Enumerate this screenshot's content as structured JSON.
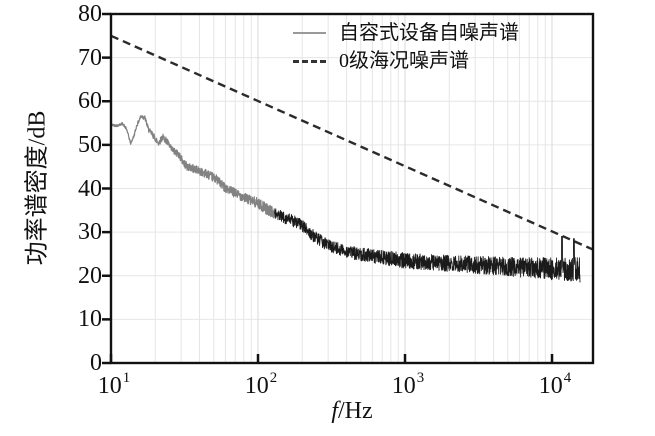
{
  "figure": {
    "background": "#ffffff",
    "ylabel": "功率谱密度/dB",
    "xlabel_italic": "f",
    "xlabel_unit": "/Hz",
    "legend": {
      "position": "top-right",
      "items": [
        {
          "label": "自容式设备自噪声谱",
          "style": "solid",
          "sample_color": "#999999"
        },
        {
          "label": "0级海况噪声谱",
          "style": "dashed",
          "sample_color": "#333333"
        }
      ]
    }
  },
  "chart_data": {
    "type": "line",
    "title": "",
    "xlabel": "f/Hz",
    "ylabel": "功率谱密度/dB",
    "xscale": "log",
    "xlim": [
      10,
      19000
    ],
    "ylim": [
      0,
      80
    ],
    "yticks": [
      0,
      10,
      20,
      30,
      40,
      50,
      60,
      70,
      80
    ],
    "xticks": [
      {
        "value": 10,
        "base": "10",
        "exp": "1"
      },
      {
        "value": 100,
        "base": "10",
        "exp": "2"
      },
      {
        "value": 1000,
        "base": "10",
        "exp": "3"
      },
      {
        "value": 10000,
        "base": "10",
        "exp": "4"
      }
    ],
    "grid": true,
    "grid_color_minor": "#e6e6e6",
    "grid_color_major": "#d9d9d9",
    "legend_position": "top-right",
    "series": [
      {
        "name": "自容式设备自噪声谱",
        "line": "solid",
        "color_low_freq": "#828282",
        "color_high_freq": "#1b1b1b",
        "f_start": 10,
        "f_end": 15500,
        "keypoints": [
          [
            10,
            54.6
          ],
          [
            11,
            54.4
          ],
          [
            12,
            54.9
          ],
          [
            12.8,
            53.5
          ],
          [
            13.6,
            50.3
          ],
          [
            14.3,
            52.0
          ],
          [
            15,
            54.5
          ],
          [
            16,
            56.6
          ],
          [
            17,
            56.2
          ],
          [
            18,
            53.5
          ],
          [
            19.5,
            52.0
          ],
          [
            21,
            50.4
          ],
          [
            22.5,
            51.8
          ],
          [
            24,
            50.8
          ],
          [
            25.5,
            49.2
          ],
          [
            27,
            48.4
          ],
          [
            29,
            47.8
          ],
          [
            31,
            46.0
          ],
          [
            33,
            45.0
          ],
          [
            36,
            44.6
          ],
          [
            40,
            44.0
          ],
          [
            44,
            43.5
          ],
          [
            48,
            42.8
          ],
          [
            52,
            42.2
          ],
          [
            57,
            40.8
          ],
          [
            63,
            39.7
          ],
          [
            70,
            38.9
          ],
          [
            78,
            38.2
          ],
          [
            87,
            37.4
          ],
          [
            100,
            36.6
          ],
          [
            115,
            35.3
          ],
          [
            130,
            34.3
          ],
          [
            150,
            33.3
          ],
          [
            170,
            32.7
          ],
          [
            195,
            31.8
          ],
          [
            225,
            29.8
          ],
          [
            260,
            28.2
          ],
          [
            300,
            27.0
          ],
          [
            350,
            26.2
          ],
          [
            420,
            25.4
          ],
          [
            500,
            24.9
          ],
          [
            600,
            24.5
          ],
          [
            750,
            24.0
          ],
          [
            900,
            23.7
          ],
          [
            1100,
            23.3
          ],
          [
            1400,
            23.1
          ],
          [
            1800,
            22.9
          ],
          [
            2300,
            22.7
          ],
          [
            3000,
            22.5
          ],
          [
            4000,
            22.3
          ],
          [
            5000,
            22.1
          ],
          [
            6500,
            21.9
          ],
          [
            8000,
            21.8
          ],
          [
            10000,
            21.6
          ],
          [
            12000,
            21.4
          ],
          [
            15500,
            21.3
          ]
        ],
        "noise_envelope_db": [
          [
            10,
            0.25
          ],
          [
            14,
            0.3
          ],
          [
            20,
            0.7
          ],
          [
            30,
            0.9
          ],
          [
            50,
            1.0
          ],
          [
            80,
            1.1
          ],
          [
            120,
            1.3
          ],
          [
            200,
            1.4
          ],
          [
            300,
            1.4
          ],
          [
            600,
            1.6
          ],
          [
            1000,
            1.8
          ],
          [
            2000,
            1.9
          ],
          [
            4000,
            2.1
          ],
          [
            8000,
            2.4
          ],
          [
            12000,
            2.7
          ],
          [
            15500,
            2.9
          ]
        ],
        "spikes": [
          [
            11700,
            29.0
          ],
          [
            14100,
            28.5
          ]
        ]
      },
      {
        "name": "0级海况噪声谱",
        "line": "dashed",
        "color": "#2b2b2b",
        "points": [
          [
            10,
            75
          ],
          [
            19000,
            26
          ]
        ],
        "slope_db_per_decade": -15
      }
    ]
  }
}
